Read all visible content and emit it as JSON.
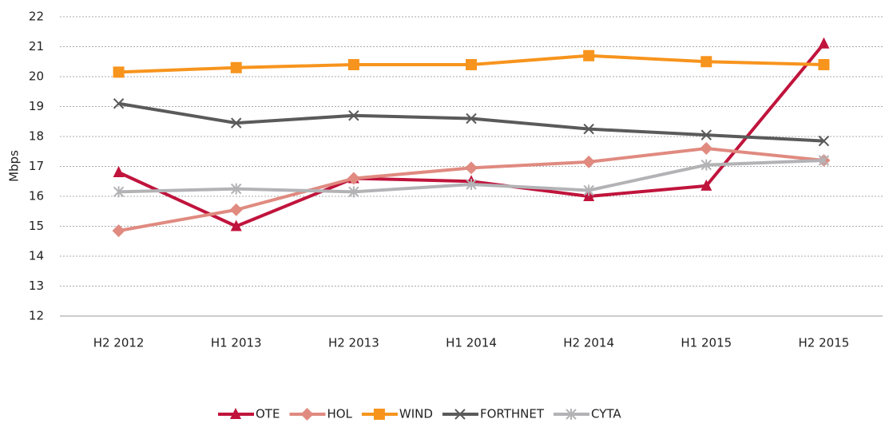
{
  "chart_data": {
    "type": "line",
    "y_label": "Mbps",
    "categories": [
      "H2 2012",
      "H1 2013",
      "H2 2013",
      "H1 2014",
      "H2 2014",
      "H1 2015",
      "H2 2015"
    ],
    "series": [
      {
        "name": "OTE",
        "color": "#c0143c",
        "marker": "triangle",
        "values": [
          16.8,
          15.0,
          16.6,
          16.5,
          16.0,
          16.35,
          21.1
        ]
      },
      {
        "name": "HOL",
        "color": "#e08a80",
        "marker": "diamond",
        "values": [
          14.85,
          15.55,
          16.6,
          16.95,
          17.15,
          17.6,
          17.2
        ]
      },
      {
        "name": "WIND",
        "color": "#f7941d",
        "marker": "square",
        "values": [
          20.15,
          20.3,
          20.4,
          20.4,
          20.7,
          20.5,
          20.4
        ]
      },
      {
        "name": "FORTHNET",
        "color": "#5a5a5a",
        "marker": "x",
        "values": [
          19.1,
          18.45,
          18.7,
          18.6,
          18.25,
          18.05,
          17.85
        ]
      },
      {
        "name": "CYTA",
        "color": "#b3b3b6",
        "marker": "asterisk",
        "values": [
          16.15,
          16.25,
          16.15,
          16.4,
          16.2,
          17.05,
          17.2
        ]
      }
    ],
    "ylim": [
      12,
      22
    ],
    "yticks": [
      12,
      13,
      14,
      15,
      16,
      17,
      18,
      19,
      20,
      21,
      22
    ],
    "grid": true,
    "legend": "bottom"
  }
}
